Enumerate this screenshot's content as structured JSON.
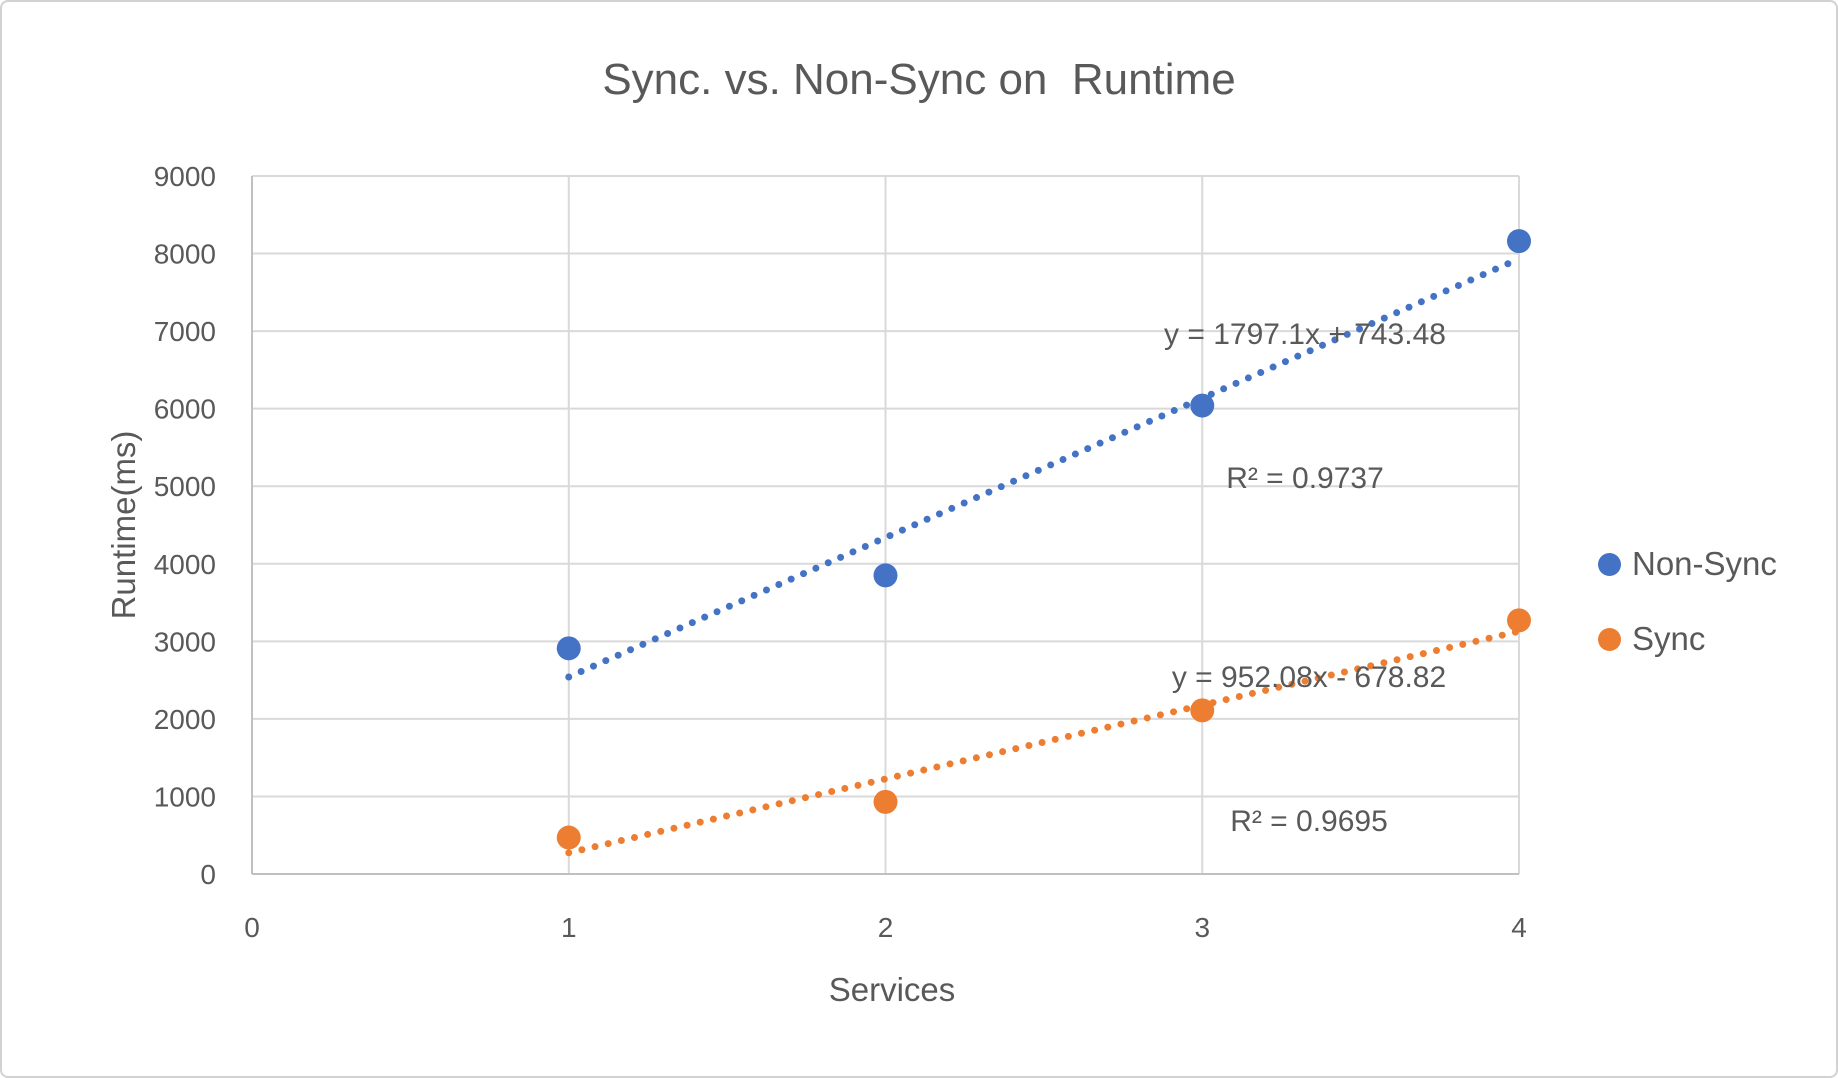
{
  "frame": {
    "background": "#ffffff",
    "border_color": "#d2d2d2"
  },
  "chart_data": {
    "type": "scatter",
    "title": "Sync. vs. Non-Sync on  Runtime",
    "xlabel": "Services",
    "ylabel": "Runtime(ms)",
    "xlim": [
      0,
      4
    ],
    "ylim": [
      0,
      9000
    ],
    "x_ticks": [
      "0",
      "1",
      "2",
      "3",
      "4"
    ],
    "y_ticks": [
      "0",
      "1000",
      "2000",
      "3000",
      "4000",
      "5000",
      "6000",
      "7000",
      "8000",
      "9000"
    ],
    "grid": true,
    "legend_position": "right",
    "text_color": "#595959",
    "gridline_color": "#d9d9d9",
    "axis_line_color": "#c0c0c0",
    "series": [
      {
        "name": "Non-Sync",
        "color": "#4472c4",
        "marker": "circle",
        "x": [
          1,
          2,
          3,
          4
        ],
        "y": [
          2910,
          3850,
          6040,
          8160
        ],
        "trendline": {
          "style": "dotted",
          "slope": 1797.1,
          "intercept": 743.48,
          "equation_label": "y = 1797.1x + 743.48",
          "r2_label": "R² = 0.9737"
        }
      },
      {
        "name": "Sync",
        "color": "#ed7d31",
        "marker": "circle",
        "x": [
          1,
          2,
          3,
          4
        ],
        "y": [
          470,
          930,
          2110,
          3270
        ],
        "trendline": {
          "style": "dotted",
          "slope": 952.08,
          "intercept": -678.82,
          "equation_label": "y = 952.08x - 678.82",
          "r2_label": "R² = 0.9695"
        }
      }
    ]
  }
}
